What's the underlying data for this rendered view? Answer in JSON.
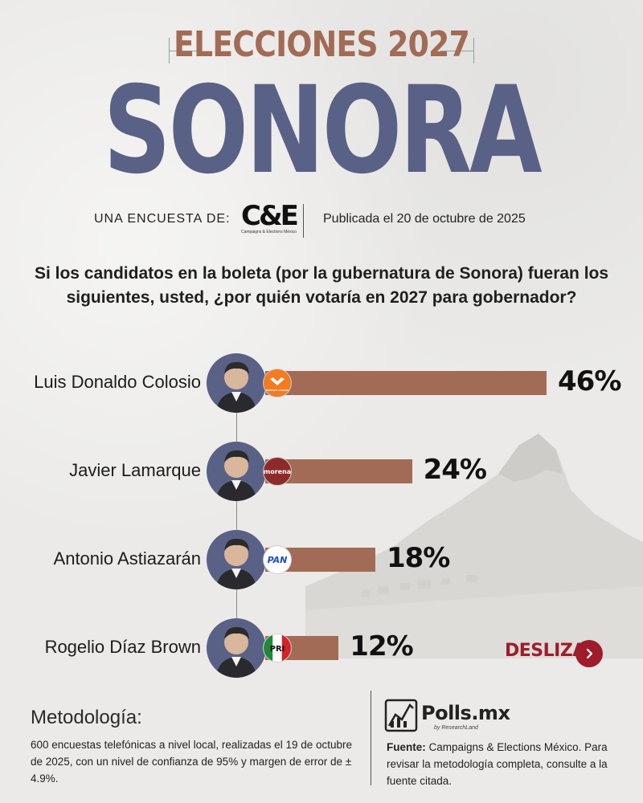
{
  "header": {
    "title_top": "ELECCIONES 2027",
    "title_main": "SONORA"
  },
  "survey": {
    "label": "UNA ENCUESTA DE:",
    "logo_mark": "C&E",
    "logo_sub": "Campaigns & Elections México",
    "date": "Publicada el 20 de octubre de 2025"
  },
  "question": "Si los candidatos en la boleta (por la gubernatura de Sonora) fueran los siguientes, usted, ¿por quién votaría en 2027 para gobernador?",
  "chart_data": {
    "type": "bar",
    "orientation": "horizontal",
    "categories": [
      "Luis Donaldo Colosio",
      "Javier Lamarque",
      "Antonio Astiazarán",
      "Rogelio Díaz Brown"
    ],
    "values": [
      46,
      24,
      18,
      12
    ],
    "value_labels": [
      "46%",
      "24%",
      "18%",
      "12%"
    ],
    "parties": [
      "movimiento-ciudadano",
      "morena",
      "pan",
      "pri"
    ],
    "party_labels": [
      "MOVIMIENTO CIUDADANO",
      "morena",
      "PAN",
      "PRI"
    ],
    "bar_color": "#a26b55",
    "xlim": [
      0,
      46
    ]
  },
  "nav": {
    "slide_label": "DESLIZA"
  },
  "methodology": {
    "title": "Metodología:",
    "text": "600 encuestas telefónicas a nivel local, realizadas el 19 de octubre de 2025, con un nivel de confianza de 95% y margen de error de ± 4.9%."
  },
  "brand": {
    "name": "Polls.mx",
    "by": "by ResearchLand"
  },
  "source": {
    "label": "Fuente:",
    "text": "Campaigns & Elections México. Para revisar la metodología completa, consulte a la fuente citada."
  },
  "colors": {
    "accent_brown": "#a26b55",
    "accent_blue": "#5a6186",
    "deslizar_red": "#9e1c2b"
  }
}
